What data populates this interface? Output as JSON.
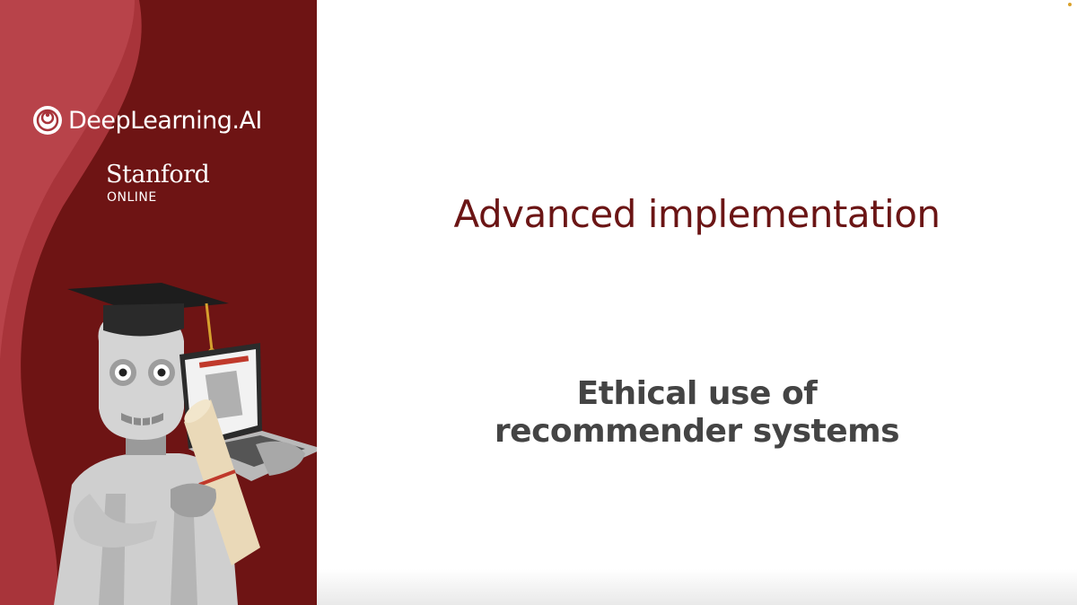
{
  "sidebar": {
    "brand": "DeepLearning.AI",
    "partner_name": "Stanford",
    "partner_sub": "ONLINE",
    "colors": {
      "dark": "#6e1414",
      "light": "#b53a40"
    },
    "illustration": "graduate-robot-with-laptop-and-diploma"
  },
  "slide": {
    "title": "Advanced implementation",
    "subtitle_line1": "Ethical use of",
    "subtitle_line2": "recommender systems",
    "title_color": "#6b1515",
    "subtitle_color": "#444444"
  }
}
